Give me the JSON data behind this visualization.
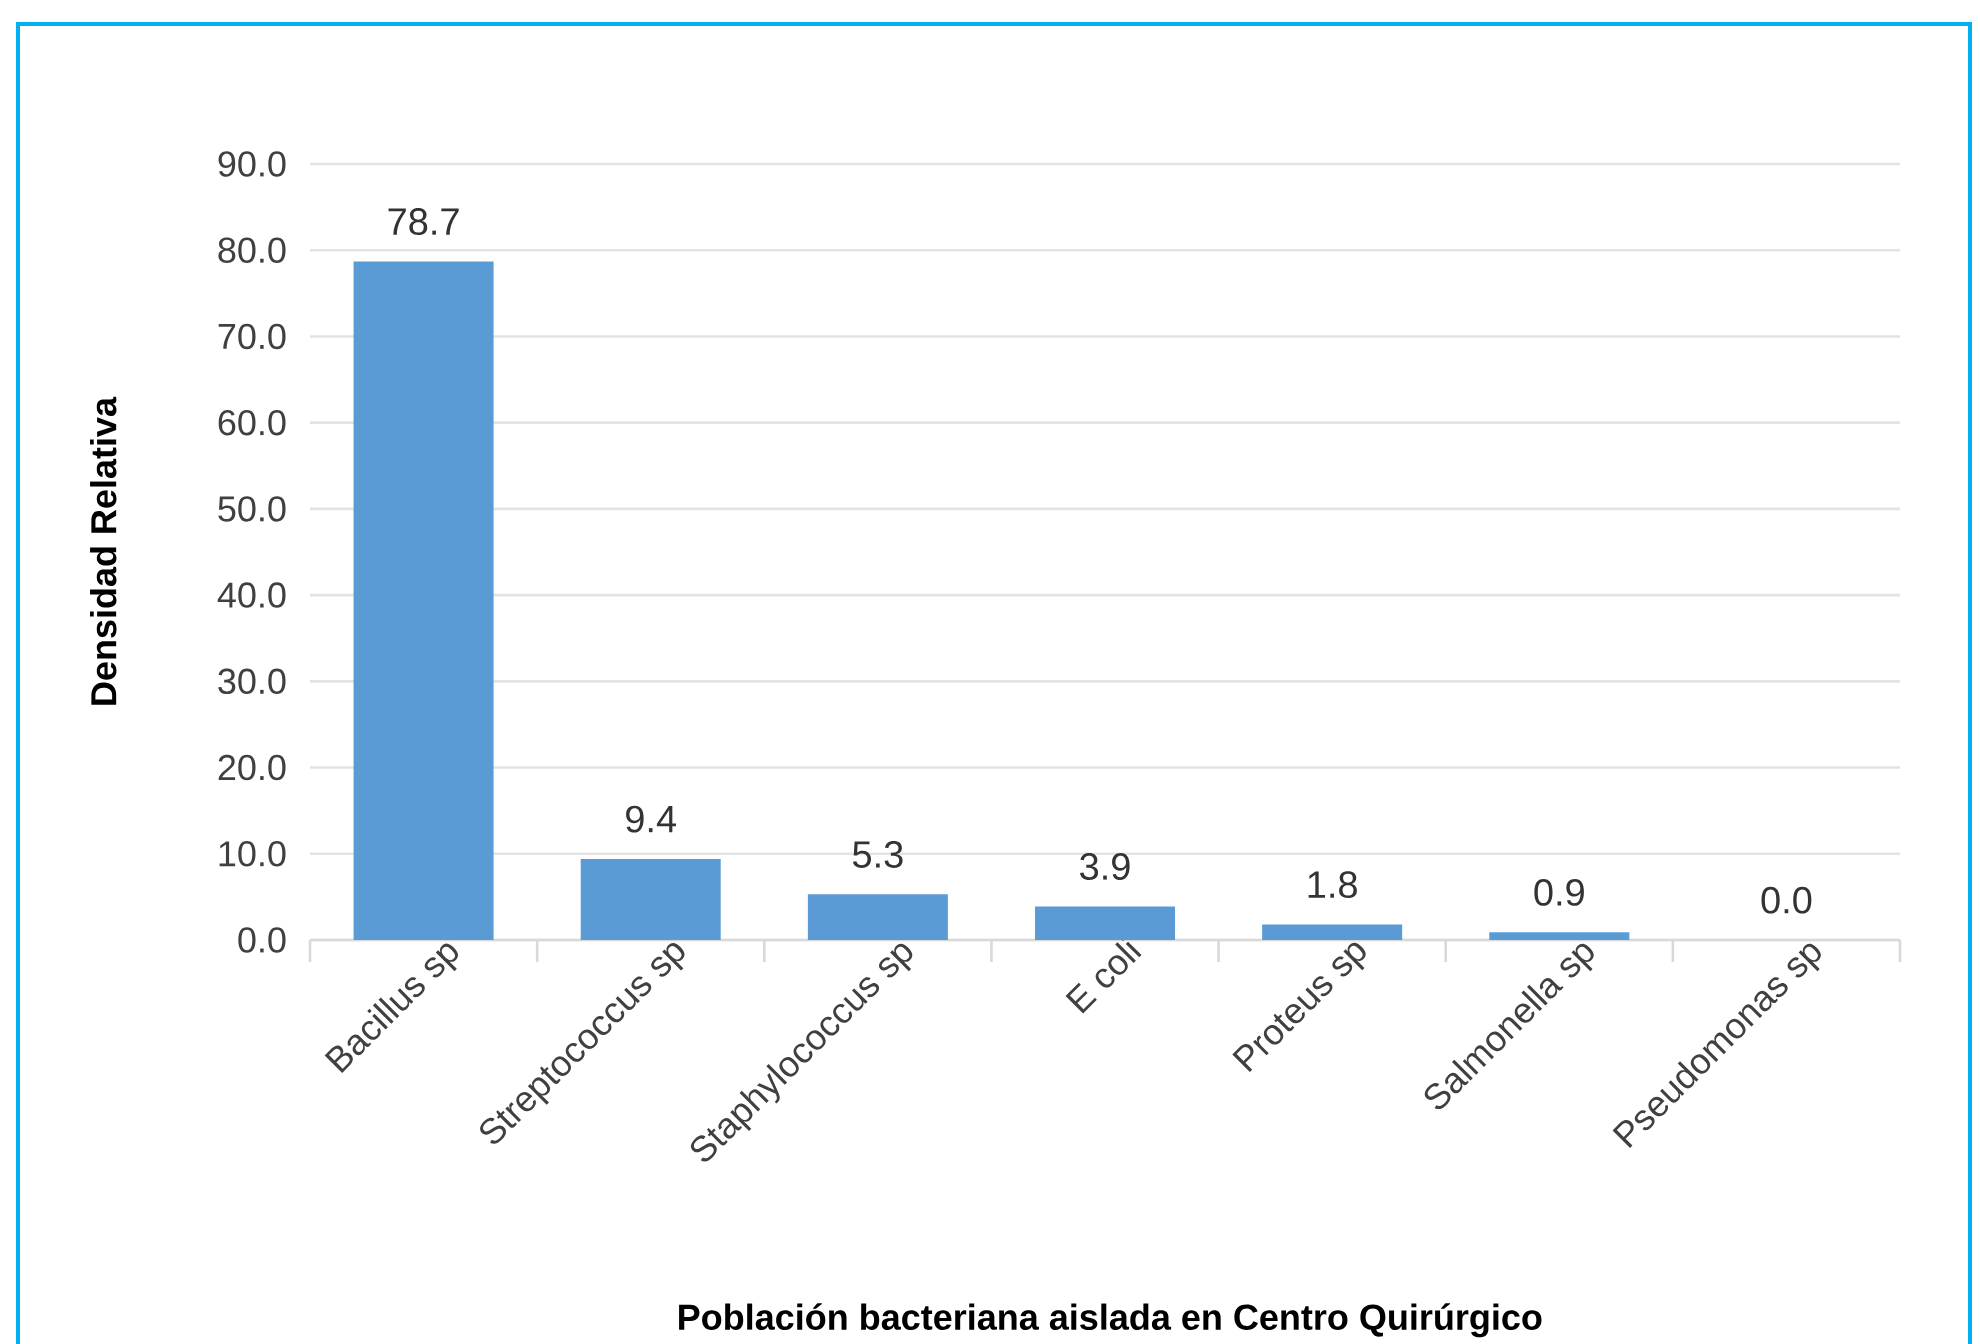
{
  "chart_data": {
    "type": "bar",
    "xlabel": "Población bacteriana aislada en Centro Quirúrgico",
    "ylabel": "Densidad Relativa",
    "categories": [
      "Bacillus sp",
      "Streptococcus sp",
      "Staphylococcus sp",
      "E coli",
      "Proteus sp",
      "Salmonella sp",
      "Pseudomonas sp"
    ],
    "values": [
      78.7,
      9.4,
      5.3,
      3.9,
      1.8,
      0.9,
      0.0
    ],
    "value_labels": [
      "78.7",
      "9.4",
      "5.3",
      "3.9",
      "1.8",
      "0.9",
      "0.0"
    ],
    "color": "#5b9bd5",
    "ylim": [
      0,
      90
    ],
    "yticks": [
      {
        "value": 0,
        "label": "0.0"
      },
      {
        "value": 10,
        "label": "10.0"
      },
      {
        "value": 20,
        "label": "20.0"
      },
      {
        "value": 30,
        "label": "30.0"
      },
      {
        "value": 40,
        "label": "40.0"
      },
      {
        "value": 50,
        "label": "50.0"
      },
      {
        "value": 60,
        "label": "60.0"
      },
      {
        "value": 70,
        "label": "70.0"
      },
      {
        "value": 80,
        "label": "80.0"
      },
      {
        "value": 90,
        "label": "90.0"
      }
    ],
    "grid": "y"
  }
}
